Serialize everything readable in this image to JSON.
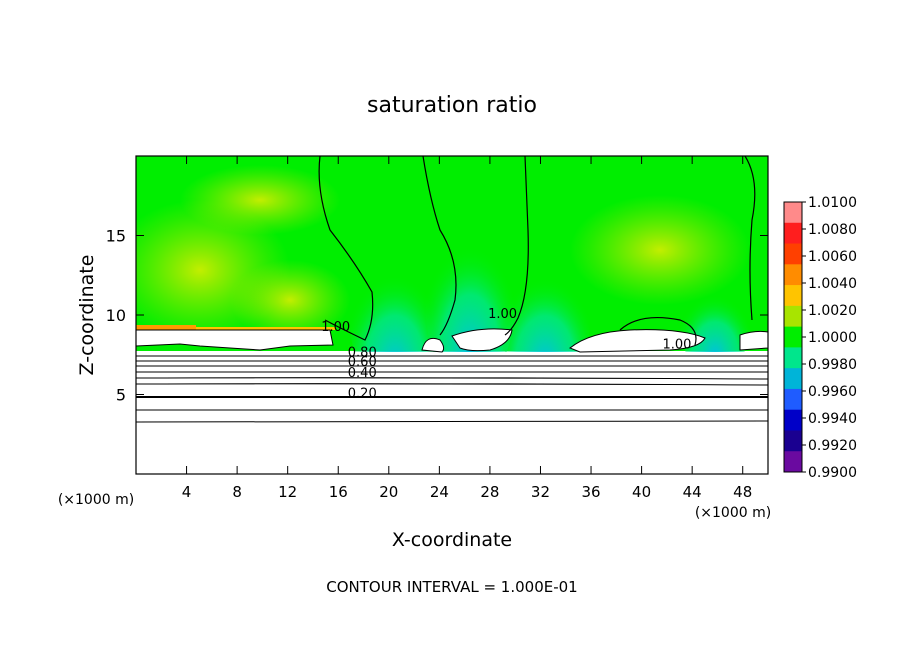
{
  "chart_data": {
    "type": "heatmap",
    "title": "saturation ratio",
    "xlabel": "X-coordinate",
    "ylabel": "Z-coordinate",
    "x_unit": "(×1000 m)",
    "y_unit": "(×1000 m)",
    "xlim": [
      0,
      50
    ],
    "ylim": [
      0,
      20
    ],
    "x_ticks": [
      4,
      8,
      12,
      16,
      20,
      24,
      28,
      32,
      36,
      40,
      44,
      48
    ],
    "y_ticks": [
      5,
      10,
      15
    ],
    "colorbar": {
      "labels": [
        "1.0100",
        "1.0080",
        "1.0060",
        "1.0040",
        "1.0020",
        "1.0000",
        "0.9980",
        "0.9960",
        "0.9940",
        "0.9920",
        "0.9900"
      ],
      "colors": [
        "#ff8a8a",
        "#ff1e1e",
        "#ff4000",
        "#ff8c00",
        "#ffc400",
        "#a8e400",
        "#00ee00",
        "#00e68c",
        "#00b4d8",
        "#1f5cff",
        "#0000c8",
        "#1a0090",
        "#6a0aa0"
      ]
    },
    "contour_labels": [
      {
        "text": "1.00",
        "x": 15.8,
        "z": 9.0
      },
      {
        "text": "1.00",
        "x": 29.0,
        "z": 9.8
      },
      {
        "text": "1.00",
        "x": 42.8,
        "z": 7.9
      },
      {
        "text": "0.80",
        "x": 17.9,
        "z": 7.4
      },
      {
        "text": "0.60",
        "x": 17.9,
        "z": 6.8
      },
      {
        "text": "0.40",
        "x": 17.9,
        "z": 6.1
      },
      {
        "text": "0.20",
        "x": 17.9,
        "z": 4.8
      }
    ],
    "contour_interval": "CONTOUR INTERVAL = 1.000E-01"
  }
}
